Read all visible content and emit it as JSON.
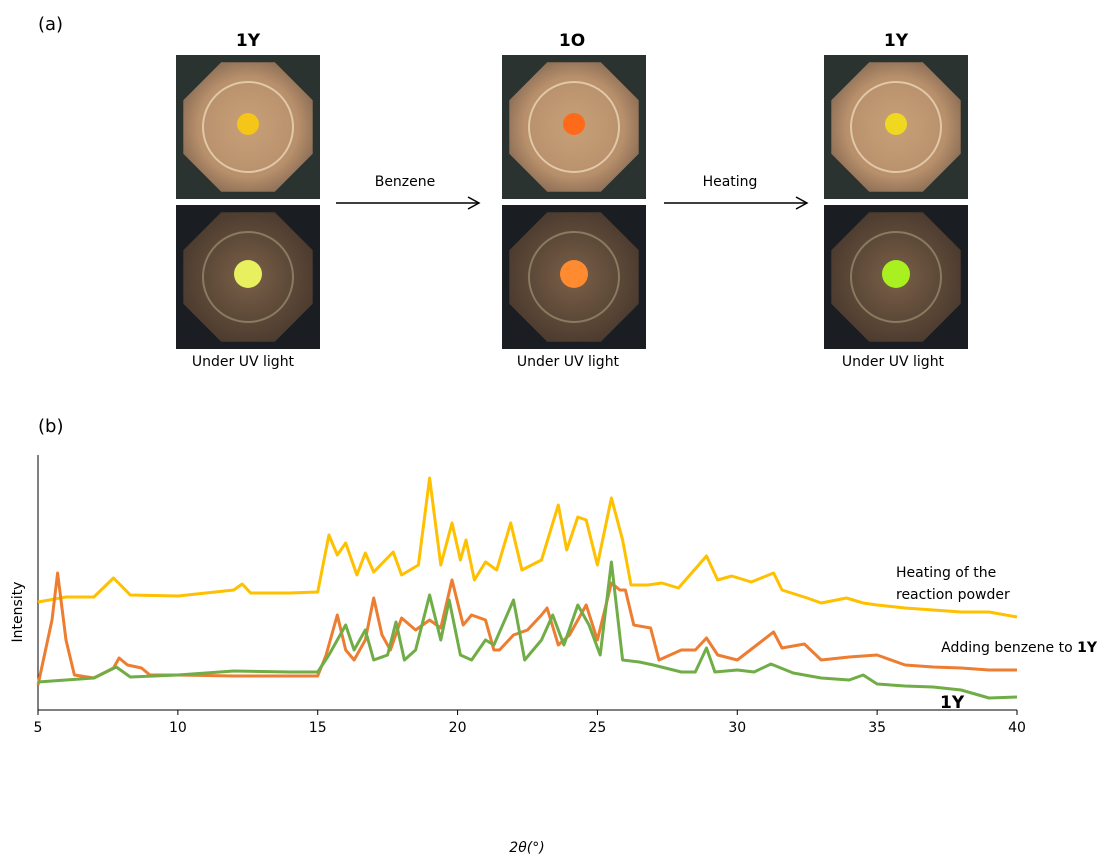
{
  "panel_a": {
    "label": "(a)",
    "stages": [
      "1Y",
      "1O",
      "1Y"
    ],
    "arrows": [
      "Benzene",
      "Heating"
    ],
    "captions": [
      "Under UV light",
      "Under UV light",
      "Under UV light"
    ]
  },
  "chart_data": {
    "type": "line",
    "panel_label": "(b)",
    "x_label": "2θ(°)",
    "y_label": "Intensity",
    "xlim": [
      5,
      40
    ],
    "xticks": [
      5,
      10,
      15,
      20,
      25,
      30,
      35,
      40
    ],
    "ylim": [
      0,
      255
    ],
    "series": [
      {
        "name": "Heating of the reaction powder",
        "color": "#ffc000",
        "x": [
          5,
          6,
          7,
          7.7,
          8.3,
          10,
          12,
          12.3,
          12.6,
          14,
          15,
          15.4,
          15.7,
          16,
          16.4,
          16.7,
          17,
          17.7,
          18,
          18.6,
          19,
          19.4,
          19.8,
          20.1,
          20.3,
          20.6,
          21,
          21.4,
          21.9,
          22.3,
          23,
          23.6,
          23.9,
          24.3,
          24.6,
          25,
          25.5,
          25.9,
          26.2,
          26.8,
          27.3,
          27.9,
          28.9,
          29.3,
          29.8,
          30.5,
          31.3,
          31.6,
          32.5,
          33,
          33.9,
          34.5,
          35,
          36,
          37,
          38,
          39,
          40
        ],
        "values": [
          108,
          113,
          113,
          132,
          115,
          114,
          120,
          126,
          117,
          117,
          118,
          175,
          155,
          167,
          135,
          157,
          138,
          158,
          135,
          145,
          232,
          145,
          187,
          150,
          170,
          130,
          148,
          140,
          187,
          140,
          150,
          205,
          160,
          193,
          190,
          145,
          212,
          170,
          125,
          125,
          127,
          122,
          154,
          130,
          134,
          128,
          137,
          120,
          112,
          107,
          112,
          107,
          105,
          102,
          100,
          98,
          98,
          93
        ]
      },
      {
        "name": "Adding benzene  to 1Y",
        "color": "#ed7d31",
        "x": [
          5,
          5.5,
          5.7,
          6,
          6.3,
          7,
          7.7,
          7.9,
          8.2,
          8.7,
          9,
          10,
          12,
          14,
          15,
          15.3,
          15.7,
          16,
          16.3,
          16.7,
          17,
          17.3,
          17.6,
          18,
          18.5,
          19,
          19.4,
          19.8,
          20.2,
          20.5,
          21,
          21.3,
          21.5,
          22,
          22.5,
          23,
          23.2,
          23.6,
          24,
          24.6,
          25,
          25.5,
          25.8,
          26,
          26.3,
          26.9,
          27.2,
          28,
          28.5,
          28.9,
          29.3,
          30,
          31.3,
          31.6,
          32.4,
          33,
          34,
          35,
          36,
          37,
          38,
          39,
          40
        ],
        "values": [
          25,
          90,
          137,
          70,
          35,
          32,
          42,
          52,
          45,
          42,
          35,
          35,
          34,
          34,
          34,
          55,
          95,
          60,
          50,
          70,
          112,
          75,
          60,
          92,
          80,
          90,
          82,
          130,
          85,
          95,
          90,
          60,
          60,
          75,
          80,
          95,
          102,
          65,
          75,
          105,
          70,
          127,
          120,
          120,
          85,
          82,
          50,
          60,
          60,
          72,
          55,
          50,
          78,
          62,
          66,
          50,
          53,
          55,
          45,
          43,
          42,
          40,
          40
        ]
      },
      {
        "name": "1Y",
        "color": "#70ad47",
        "x": [
          5,
          7,
          7.8,
          8.3,
          10,
          12,
          14,
          15,
          15.4,
          15.7,
          16,
          16.3,
          16.7,
          17,
          17.5,
          17.8,
          18.1,
          18.5,
          19,
          19.4,
          19.7,
          20.1,
          20.5,
          21,
          21.3,
          22,
          22.4,
          23,
          23.4,
          23.8,
          24.3,
          24.7,
          25.1,
          25.5,
          25.9,
          26.5,
          27,
          28,
          28.5,
          28.9,
          29.2,
          30,
          30.6,
          31.2,
          32,
          33,
          34,
          34.5,
          35,
          36,
          37,
          38,
          39,
          40
        ],
        "values": [
          28,
          32,
          43,
          33,
          35,
          39,
          38,
          38,
          55,
          70,
          85,
          60,
          80,
          50,
          55,
          88,
          50,
          60,
          115,
          70,
          110,
          55,
          50,
          70,
          65,
          110,
          50,
          70,
          95,
          65,
          105,
          85,
          55,
          148,
          50,
          48,
          45,
          38,
          38,
          62,
          38,
          40,
          38,
          46,
          37,
          32,
          30,
          35,
          26,
          24,
          23,
          20,
          12,
          13
        ]
      }
    ]
  }
}
